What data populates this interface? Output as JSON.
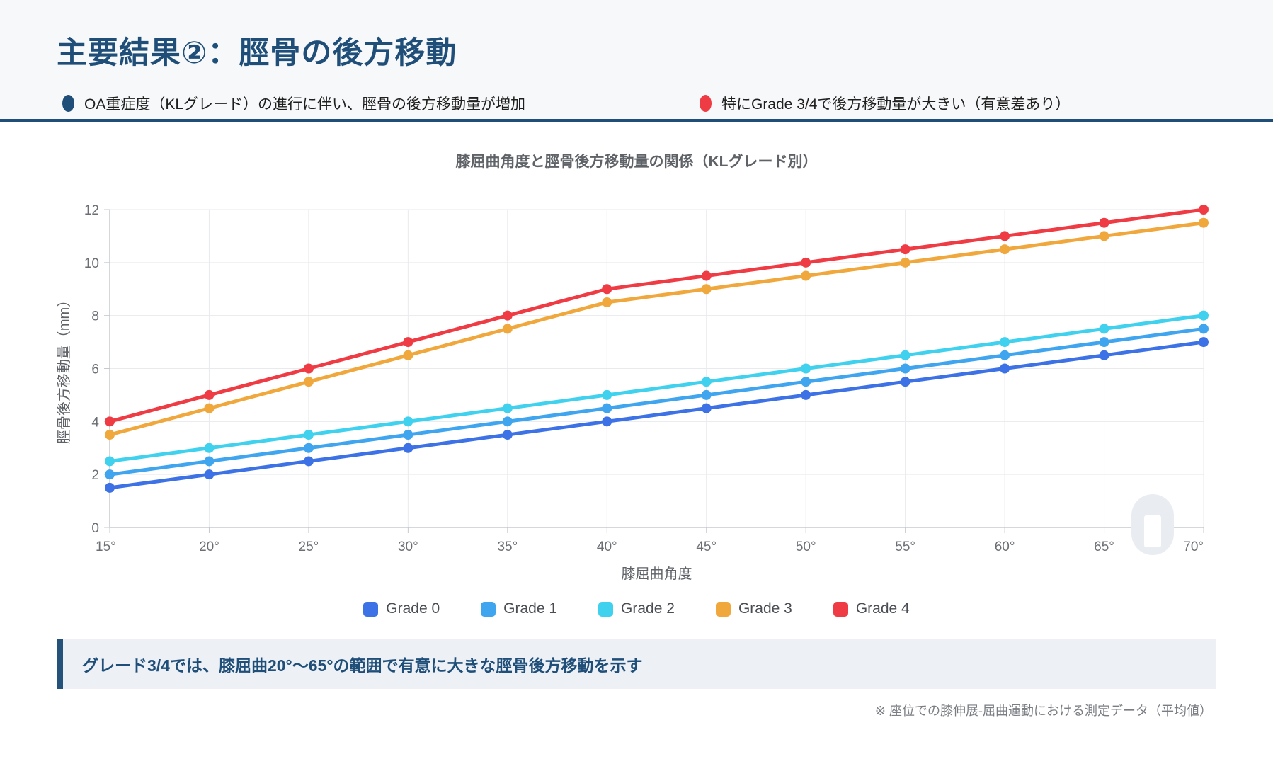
{
  "header": {
    "title": "主要結果②：脛骨の後方移動",
    "bullets": [
      {
        "text": "OA重症度（KLグレード）の進行に伴い、脛骨の後方移動量が増加",
        "dot_color": "#1f4e79"
      },
      {
        "text": "特にGrade 3/4で後方移動量が大きい（有意差あり）",
        "dot_color": "#ef3b43"
      }
    ]
  },
  "chart_data": {
    "type": "line",
    "title": "膝屈曲角度と脛骨後方移動量の関係（KLグレード別）",
    "xlabel": "膝屈曲角度",
    "ylabel": "脛骨後方移動量（mm）",
    "categories": [
      "15°",
      "20°",
      "25°",
      "30°",
      "35°",
      "40°",
      "45°",
      "50°",
      "55°",
      "60°",
      "65°",
      "70°"
    ],
    "ylim": [
      0,
      12
    ],
    "ytick_step": 2,
    "grid": true,
    "legend_position": "bottom",
    "series": [
      {
        "name": "Grade 0",
        "color": "#3c72e6",
        "values": [
          1.5,
          2.0,
          2.5,
          3.0,
          3.5,
          4.0,
          4.5,
          5.0,
          5.5,
          6.0,
          6.5,
          7.0
        ]
      },
      {
        "name": "Grade 1",
        "color": "#3fa5ef",
        "values": [
          2.0,
          2.5,
          3.0,
          3.5,
          4.0,
          4.5,
          5.0,
          5.5,
          6.0,
          6.5,
          7.0,
          7.5
        ]
      },
      {
        "name": "Grade 2",
        "color": "#3fd1ee",
        "values": [
          2.5,
          3.0,
          3.5,
          4.0,
          4.5,
          5.0,
          5.5,
          6.0,
          6.5,
          7.0,
          7.5,
          8.0
        ]
      },
      {
        "name": "Grade 3",
        "color": "#f0a83d",
        "values": [
          3.5,
          4.5,
          5.5,
          6.5,
          7.5,
          8.5,
          9.0,
          9.5,
          10.0,
          10.5,
          11.0,
          11.5
        ]
      },
      {
        "name": "Grade 4",
        "color": "#ef3b43",
        "values": [
          4.0,
          5.0,
          6.0,
          7.0,
          8.0,
          9.0,
          9.5,
          10.0,
          10.5,
          11.0,
          11.5,
          12.0
        ]
      }
    ]
  },
  "callout": {
    "text": "グレード3/4では、膝屈曲20°〜65°の範囲で有意に大きな脛骨後方移動を示す"
  },
  "footnote": "※ 座位での膝伸展-屈曲運動における測定データ（平均値）"
}
